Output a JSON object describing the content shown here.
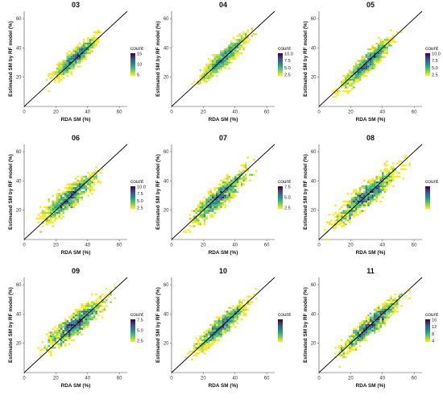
{
  "colors": {
    "scale_low": "#fde725",
    "scale_mid1": "#5ec962",
    "scale_mid2": "#21918c",
    "scale_mid3": "#3b528b",
    "scale_high": "#440154",
    "one_to_one_line": "#000000"
  },
  "chart_data": [
    {
      "type": "heatmap",
      "title": "03",
      "xlabel": "RDA SM (%)",
      "ylabel": "Estimated SM by RF model (%)",
      "xlim": [
        0,
        65
      ],
      "ylim": [
        0,
        65
      ],
      "xticks": [
        0,
        20,
        40,
        60
      ],
      "yticks": [
        20,
        40,
        60
      ],
      "x_tick_labels": [
        "0",
        "20",
        "40",
        "60"
      ],
      "y_tick_labels": [
        "20",
        "40",
        "60"
      ],
      "reference_line": "1:1",
      "legend": {
        "title": "count",
        "placement": "right",
        "range": [
          1,
          15
        ],
        "ticks": [
          "15",
          "10",
          "5"
        ]
      },
      "cloud": {
        "x_range": [
          15,
          48
        ],
        "center": [
          33,
          34
        ],
        "slope": 0.95,
        "spread_sd": 2.8,
        "max_count": 15
      }
    },
    {
      "type": "heatmap",
      "title": "04",
      "xlabel": "RDA SM (%)",
      "ylabel": "Estimated SM by RF model (%)",
      "xlim": [
        0,
        65
      ],
      "ylim": [
        0,
        65
      ],
      "xticks": [
        0,
        20,
        40,
        60
      ],
      "yticks": [
        20,
        40,
        60
      ],
      "x_tick_labels": [
        "0",
        "20",
        "40",
        "60"
      ],
      "y_tick_labels": [
        "20",
        "40",
        "60"
      ],
      "reference_line": "1:1",
      "legend": {
        "title": "count",
        "placement": "right",
        "range": [
          1,
          10
        ],
        "ticks": [
          "10.0",
          "7.5",
          "5.0",
          "2.5"
        ]
      },
      "cloud": {
        "x_range": [
          15,
          50
        ],
        "center": [
          33,
          33
        ],
        "slope": 0.95,
        "spread_sd": 3.0,
        "max_count": 10
      }
    },
    {
      "type": "heatmap",
      "title": "05",
      "xlabel": "RDA SM (%)",
      "ylabel": "Estimated SM by RF model (%)",
      "xlim": [
        0,
        65
      ],
      "ylim": [
        0,
        65
      ],
      "xticks": [
        0,
        20,
        40,
        60
      ],
      "yticks": [
        20,
        40,
        60
      ],
      "x_tick_labels": [
        "0",
        "20",
        "40",
        "60"
      ],
      "y_tick_labels": [
        "20",
        "40",
        "60"
      ],
      "reference_line": "1:1",
      "legend": {
        "title": "count",
        "placement": "right",
        "range": [
          1,
          10
        ],
        "ticks": [
          "10.0",
          "7.5",
          "5.0",
          "2.5"
        ]
      },
      "cloud": {
        "x_range": [
          12,
          50
        ],
        "center": [
          30,
          29
        ],
        "slope": 1.0,
        "spread_sd": 3.2,
        "max_count": 10
      }
    },
    {
      "type": "heatmap",
      "title": "06",
      "xlabel": "RDA SM (%)",
      "ylabel": "Estimated SM by RF model (%)",
      "xlim": [
        0,
        65
      ],
      "ylim": [
        0,
        65
      ],
      "xticks": [
        0,
        20,
        40,
        60
      ],
      "yticks": [
        20,
        40,
        60
      ],
      "x_tick_labels": [
        "0",
        "20",
        "40",
        "60"
      ],
      "y_tick_labels": [
        "20",
        "40",
        "60"
      ],
      "reference_line": "1:1",
      "legend": {
        "title": "count",
        "placement": "right",
        "range": [
          1,
          10
        ],
        "ticks": [
          "10.0",
          "7.5",
          "5.0",
          "2.5"
        ]
      },
      "cloud": {
        "x_range": [
          8,
          48
        ],
        "center": [
          28,
          28
        ],
        "slope": 0.85,
        "spread_sd": 3.8,
        "max_count": 10
      }
    },
    {
      "type": "heatmap",
      "title": "07",
      "xlabel": "RDA SM (%)",
      "ylabel": "Estimated SM by RF model (%)",
      "xlim": [
        0,
        65
      ],
      "ylim": [
        0,
        65
      ],
      "xticks": [
        0,
        20,
        40,
        60
      ],
      "yticks": [
        20,
        40,
        60
      ],
      "x_tick_labels": [
        "0",
        "20",
        "40",
        "60"
      ],
      "y_tick_labels": [
        "20",
        "40",
        "60"
      ],
      "reference_line": "1:1",
      "legend": {
        "title": "count",
        "placement": "right",
        "range": [
          1,
          7.5
        ],
        "ticks": [
          "7.5",
          "5.0",
          "2.5"
        ]
      },
      "cloud": {
        "x_range": [
          10,
          52
        ],
        "center": [
          30,
          29
        ],
        "slope": 0.9,
        "spread_sd": 3.8,
        "max_count": 8
      }
    },
    {
      "type": "heatmap",
      "title": "08",
      "xlabel": "RDA SM (%)",
      "ylabel": "Estimated SM by RF model (%)",
      "xlim": [
        0,
        65
      ],
      "ylim": [
        0,
        65
      ],
      "xticks": [
        0,
        20,
        40,
        60
      ],
      "yticks": [
        20,
        40,
        60
      ],
      "x_tick_labels": [
        "0",
        "20",
        "40",
        "60"
      ],
      "y_tick_labels": [
        "20",
        "40",
        "60"
      ],
      "reference_line": "1:1",
      "legend": {
        "title": "count",
        "placement": "right",
        "range": [
          1,
          10
        ],
        "ticks": []
      },
      "cloud": {
        "x_range": [
          5,
          55
        ],
        "center": [
          30,
          30
        ],
        "slope": 0.85,
        "spread_sd": 4.0,
        "max_count": 10
      }
    },
    {
      "type": "heatmap",
      "title": "09",
      "xlabel": "RDA SM (%)",
      "ylabel": "Estimated SM by RF model (%)",
      "xlim": [
        0,
        65
      ],
      "ylim": [
        0,
        65
      ],
      "xticks": [
        0,
        20,
        40,
        60
      ],
      "yticks": [
        20,
        40,
        60
      ],
      "x_tick_labels": [
        "0",
        "20",
        "40",
        "60"
      ],
      "y_tick_labels": [
        "20",
        "40",
        "60"
      ],
      "reference_line": "1:1",
      "legend": {
        "title": "count",
        "placement": "right",
        "range": [
          1,
          7.5
        ],
        "ticks": [
          "7.5",
          "5.0",
          "2.5"
        ]
      },
      "cloud": {
        "x_range": [
          10,
          55
        ],
        "center": [
          32,
          33
        ],
        "slope": 0.8,
        "spread_sd": 3.8,
        "max_count": 8
      }
    },
    {
      "type": "heatmap",
      "title": "10",
      "xlabel": "RDA SM (%)",
      "ylabel": "Estimated SM by RF model (%)",
      "xlim": [
        0,
        65
      ],
      "ylim": [
        0,
        65
      ],
      "xticks": [
        0,
        20,
        40,
        60
      ],
      "yticks": [
        20,
        40,
        60
      ],
      "x_tick_labels": [
        "0",
        "20",
        "40",
        "60"
      ],
      "y_tick_labels": [
        "20",
        "40",
        "60"
      ],
      "reference_line": "1:1",
      "legend": {
        "title": "count",
        "placement": "right",
        "range": [
          1,
          12.5
        ],
        "ticks": []
      },
      "cloud": {
        "x_range": [
          12,
          52
        ],
        "center": [
          32,
          32
        ],
        "slope": 0.95,
        "spread_sd": 3.0,
        "max_count": 12
      }
    },
    {
      "type": "heatmap",
      "title": "11",
      "xlabel": "RDA SM (%)",
      "ylabel": "Estimated SM by RF model (%)",
      "xlim": [
        0,
        65
      ],
      "ylim": [
        0,
        65
      ],
      "xticks": [
        0,
        20,
        40,
        60
      ],
      "yticks": [
        20,
        40,
        60
      ],
      "x_tick_labels": [
        "0",
        "20",
        "40",
        "60"
      ],
      "y_tick_labels": [
        "20",
        "40",
        "60"
      ],
      "reference_line": "1:1",
      "legend": {
        "title": "count",
        "placement": "right",
        "range": [
          1,
          16
        ],
        "ticks": [
          "16",
          "12",
          "8",
          "4"
        ]
      },
      "cloud": {
        "x_range": [
          10,
          55
        ],
        "center": [
          33,
          33
        ],
        "slope": 0.95,
        "spread_sd": 3.2,
        "max_count": 16
      }
    }
  ]
}
